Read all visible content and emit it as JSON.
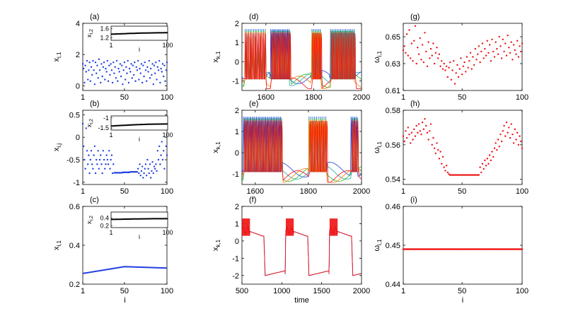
{
  "colors": {
    "blue": "#2040e0",
    "red": "#ee1111",
    "green": "#22bb22",
    "cyan": "#22aaaa",
    "orange": "#ff7700",
    "black": "#000000"
  },
  "chart_data": [
    {
      "id": "a",
      "panel_label": "(a)",
      "type": "scatter",
      "ylabel": "x",
      "ylabel_sub": "i,1",
      "xlabel": "",
      "xlim": [
        1,
        100
      ],
      "ylim": [
        -0.3,
        4
      ],
      "xticks": [
        "1",
        "50",
        "100"
      ],
      "yticks": [
        "0",
        "2",
        "4"
      ],
      "color": "blue",
      "series": [
        {
          "values": [
            1.4,
            1.1,
            0.2,
            1.3,
            0.9,
            1.6,
            0.4,
            1.0,
            1.5,
            0.3,
            1.2,
            0.7,
            1.6,
            1.0,
            0.1,
            1.5,
            0.8,
            1.3,
            0.5,
            1.7,
            1.0,
            0.2,
            1.4,
            0.6,
            1.2,
            1.5,
            0.4,
            1.1,
            0.9,
            1.6,
            0.3,
            1.3,
            0.7,
            1.4,
            1.0,
            0.2,
            1.5,
            0.8,
            1.2,
            0.5,
            1.6,
            0.3,
            1.1,
            0.9,
            1.4,
            0.6,
            1.3,
            0.1,
            1.0,
            1.5,
            0.4,
            1.2,
            0.8,
            1.6,
            0.2,
            1.1,
            0.9,
            1.4,
            0.5,
            1.3,
            0.7,
            1.5,
            0.3,
            1.2,
            1.0,
            1.6,
            0.4,
            1.1,
            0.8,
            1.4,
            0.2,
            1.3,
            0.6,
            1.5,
            1.0,
            0.3,
            1.2,
            0.9,
            1.6,
            0.5,
            1.1,
            0.7,
            1.4,
            0.1,
            1.3,
            0.8,
            1.5,
            0.4,
            1.2,
            1.0,
            1.6,
            0.2,
            1.1,
            0.9,
            1.4,
            0.6,
            1.3,
            0.3,
            1.0,
            1.5
          ]
        }
      ],
      "inset": {
        "ylabel": "x",
        "ylabel_sub": "i,2",
        "xlabel": "i",
        "xticks": [
          "1",
          "100"
        ],
        "yticks": [
          "1.2",
          "1.6"
        ],
        "ylim": [
          1.1,
          1.7
        ],
        "values_start": 1.36,
        "values_end": 1.42
      }
    },
    {
      "id": "b",
      "panel_label": "(b)",
      "type": "scatter",
      "ylabel": "x",
      "ylabel_sub": "i,j",
      "xlabel": "",
      "xlim": [
        1,
        100
      ],
      "ylim": [
        -1.05,
        0.6
      ],
      "xticks": [
        "1",
        "50",
        "100"
      ],
      "yticks": [
        "-1",
        "-0.5",
        "0",
        "0.5"
      ],
      "color": "blue",
      "series": [
        {
          "values": [
            0.3,
            -0.2,
            -0.5,
            -0.7,
            0.2,
            -0.3,
            -0.6,
            -0.4,
            -0.8,
            -0.5,
            -0.3,
            -0.6,
            -0.7,
            -0.4,
            -0.2,
            -0.8,
            -0.5,
            -0.6,
            -0.3,
            -0.7,
            -0.5,
            -0.4,
            -0.6,
            -0.8,
            -0.3,
            -0.5,
            -0.7,
            -0.6,
            -0.4,
            -0.5,
            -0.6,
            -0.3,
            -0.7,
            -0.5,
            -0.4,
            -0.8,
            -0.6,
            -0.79,
            -0.79,
            -0.79,
            -0.79,
            -0.79,
            -0.79,
            -0.79,
            -0.79,
            -0.79,
            -0.79,
            -0.78,
            -0.78,
            -0.78,
            -0.78,
            -0.78,
            -0.78,
            -0.78,
            -0.78,
            -0.78,
            -0.77,
            -0.77,
            -0.77,
            -0.77,
            -0.77,
            -0.77,
            -0.77,
            -0.77,
            -0.77,
            -0.7,
            -0.8,
            -0.6,
            -0.85,
            -0.75,
            -0.65,
            -0.9,
            -0.8,
            -0.7,
            -0.6,
            -0.85,
            -0.5,
            -0.7,
            -0.8,
            -0.6,
            -0.9,
            -0.75,
            -0.55,
            -0.8,
            -0.65,
            -0.7,
            -0.6,
            -0.75,
            -0.3,
            -0.5,
            -0.2,
            -0.6,
            -0.4,
            -0.1,
            -0.5,
            -0.3,
            -0.7,
            0.2,
            -0.2,
            -0.4
          ]
        }
      ],
      "inset": {
        "ylabel": "x",
        "ylabel_sub": "i,2",
        "xlabel": "i",
        "xticks": [
          "1",
          "100"
        ],
        "yticks": [
          "-1.5",
          "-1"
        ],
        "ylim": [
          -1.6,
          -0.9
        ],
        "values_start": -1.4,
        "values_end": -1.3
      }
    },
    {
      "id": "c",
      "panel_label": "(c)",
      "type": "line",
      "ylabel": "x",
      "ylabel_sub": "i,1",
      "xlabel": "i",
      "xlim": [
        1,
        100
      ],
      "ylim": [
        0.2,
        0.6
      ],
      "xticks": [
        "1",
        "50",
        "100"
      ],
      "yticks": [
        "0.2",
        "0.4",
        "0.6"
      ],
      "color": "blue",
      "series": [
        {
          "x": [
            1,
            50,
            100
          ],
          "values": [
            0.255,
            0.29,
            0.283
          ]
        }
      ],
      "inset": {
        "ylabel": "x",
        "ylabel_sub": "i,2",
        "xlabel": "i",
        "xticks": [
          "1",
          "100"
        ],
        "yticks": [
          "0.2",
          "0.4"
        ],
        "ylim": [
          0.15,
          0.55
        ],
        "values_start": 0.36,
        "values_end": 0.38
      }
    },
    {
      "id": "d",
      "panel_label": "(d)",
      "type": "line",
      "ylabel": "x",
      "ylabel_sub": "k,1",
      "xlabel": "",
      "xlim": [
        1500,
        2000
      ],
      "ylim": [
        -1.5,
        2
      ],
      "xticks": [
        "1600",
        "1800",
        "2000"
      ],
      "yticks": [
        "-1",
        "0",
        "1",
        "2"
      ],
      "spike_bursts": [
        [
          1510,
          1600
        ],
        [
          1620,
          1700
        ],
        [
          1790,
          1830
        ],
        [
          1870,
          1970
        ]
      ]
    },
    {
      "id": "e",
      "panel_label": "(e)",
      "type": "line",
      "ylabel": "x",
      "ylabel_sub": "k,1",
      "xlabel": "",
      "xlim": [
        1550,
        2000
      ],
      "ylim": [
        -1.5,
        2
      ],
      "xticks": [
        "1600",
        "1800",
        "2000"
      ],
      "yticks": [
        "-1",
        "0",
        "1",
        "2"
      ],
      "spike_bursts": [
        [
          1555,
          1700
        ],
        [
          1800,
          1870
        ],
        [
          1960,
          1985
        ]
      ]
    },
    {
      "id": "f",
      "panel_label": "(f)",
      "type": "line",
      "ylabel": "x",
      "ylabel_sub": "k,1",
      "xlabel": "time",
      "xlim": [
        500,
        2000
      ],
      "ylim": [
        -2.5,
        2
      ],
      "xticks": [
        "500",
        "1000",
        "1500",
        "2000"
      ],
      "yticks": [
        "-2",
        "-1",
        "0",
        "1",
        "2"
      ],
      "burst_starts": [
        500,
        1050,
        1600
      ],
      "period": 550
    },
    {
      "id": "g",
      "panel_label": "(g)",
      "type": "scatter",
      "ylabel": "ω",
      "ylabel_sub": "i,1",
      "xlabel": "",
      "xlim": [
        1,
        100
      ],
      "ylim": [
        0.61,
        0.66
      ],
      "xticks": [
        "1",
        "50",
        "100"
      ],
      "yticks": [
        "0.61",
        "0.63",
        "0.65"
      ],
      "color": "red",
      "series": [
        {
          "values": [
            0.64,
            0.643,
            0.638,
            0.652,
            0.636,
            0.655,
            0.634,
            0.645,
            0.632,
            0.647,
            0.658,
            0.63,
            0.642,
            0.637,
            0.649,
            0.633,
            0.644,
            0.631,
            0.653,
            0.639,
            0.628,
            0.646,
            0.634,
            0.641,
            0.636,
            0.645,
            0.63,
            0.638,
            0.642,
            0.634,
            0.637,
            0.628,
            0.632,
            0.626,
            0.63,
            0.625,
            0.628,
            0.62,
            0.627,
            0.631,
            0.618,
            0.625,
            0.632,
            0.615,
            0.623,
            0.629,
            0.62,
            0.626,
            0.634,
            0.622,
            0.628,
            0.631,
            0.624,
            0.635,
            0.627,
            0.632,
            0.638,
            0.626,
            0.635,
            0.629,
            0.641,
            0.633,
            0.637,
            0.643,
            0.631,
            0.639,
            0.645,
            0.634,
            0.641,
            0.636,
            0.647,
            0.638,
            0.644,
            0.632,
            0.648,
            0.639,
            0.635,
            0.646,
            0.641,
            0.637,
            0.65,
            0.643,
            0.634,
            0.648,
            0.639,
            0.645,
            0.636,
            0.651,
            0.642,
            0.638,
            0.646,
            0.633,
            0.644,
            0.64,
            0.637,
            0.647,
            0.635,
            0.643,
            0.639,
            0.645
          ]
        }
      ]
    },
    {
      "id": "h",
      "panel_label": "(h)",
      "type": "scatter",
      "ylabel": "ω",
      "ylabel_sub": "i,1",
      "xlabel": "",
      "xlim": [
        1,
        100
      ],
      "ylim": [
        0.537,
        0.58
      ],
      "xticks": [
        "1",
        "50",
        "100"
      ],
      "yticks": [
        "0.54",
        "0.56",
        "0.58"
      ],
      "color": "red",
      "series": [
        {
          "values": [
            0.565,
            0.562,
            0.568,
            0.564,
            0.57,
            0.566,
            0.561,
            0.567,
            0.563,
            0.569,
            0.565,
            0.571,
            0.567,
            0.572,
            0.568,
            0.566,
            0.573,
            0.569,
            0.575,
            0.571,
            0.567,
            0.563,
            0.568,
            0.572,
            0.56,
            0.564,
            0.558,
            0.555,
            0.561,
            0.557,
            0.552,
            0.556,
            0.549,
            0.553,
            0.547,
            0.545,
            0.548,
            0.544,
            0.543,
            0.5425,
            0.5425,
            0.5425,
            0.5425,
            0.5425,
            0.5425,
            0.5425,
            0.5425,
            0.5425,
            0.5425,
            0.5425,
            0.5425,
            0.5425,
            0.5425,
            0.5425,
            0.5425,
            0.5425,
            0.5425,
            0.5425,
            0.5425,
            0.5425,
            0.5425,
            0.5425,
            0.5425,
            0.5425,
            0.547,
            0.544,
            0.549,
            0.546,
            0.551,
            0.548,
            0.552,
            0.549,
            0.554,
            0.551,
            0.556,
            0.553,
            0.558,
            0.561,
            0.557,
            0.563,
            0.559,
            0.566,
            0.562,
            0.568,
            0.571,
            0.565,
            0.573,
            0.567,
            0.57,
            0.564,
            0.572,
            0.566,
            0.561,
            0.569,
            0.563,
            0.567,
            0.56,
            0.565,
            0.562,
            0.558
          ]
        }
      ]
    },
    {
      "id": "i",
      "panel_label": "(i)",
      "type": "scatter",
      "ylabel": "ω",
      "ylabel_sub": "i,1",
      "xlabel": "i",
      "xlim": [
        1,
        100
      ],
      "ylim": [
        0.44,
        0.46
      ],
      "xticks": [
        "1",
        "50",
        "100"
      ],
      "yticks": [
        "0.44",
        "0.45",
        "0.46"
      ],
      "color": "red",
      "constant": 0.449
    }
  ]
}
